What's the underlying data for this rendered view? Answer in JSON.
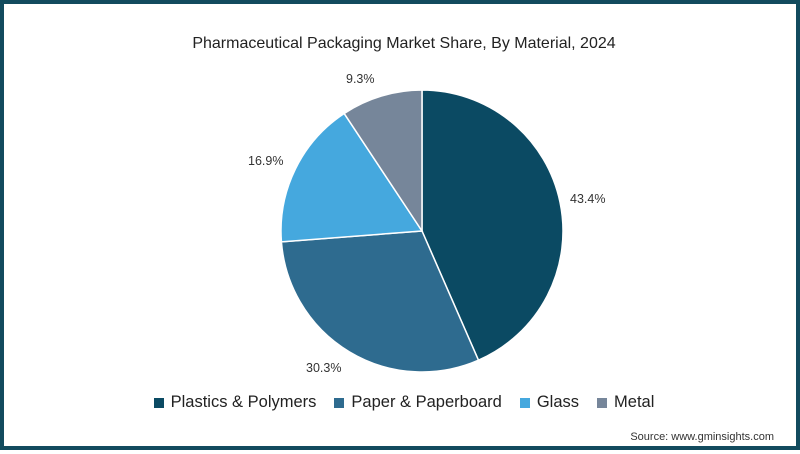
{
  "chart_data": {
    "type": "pie",
    "title": "Pharmaceutical Packaging Market Share, By Material, 2024",
    "categories": [
      "Plastics & Polymers",
      "Paper & Paperboard",
      "Glass",
      "Metal"
    ],
    "values": [
      43.4,
      30.3,
      16.9,
      9.3
    ],
    "labels": [
      "43.4%",
      "30.3%",
      "16.9%",
      "9.3%"
    ],
    "colors": [
      "#0b4a63",
      "#2e6b8f",
      "#45a8de",
      "#76869a"
    ],
    "start_angle_deg": 0,
    "direction": "clockwise",
    "legend_position": "bottom"
  },
  "source": "Source: www.gminsights.com"
}
